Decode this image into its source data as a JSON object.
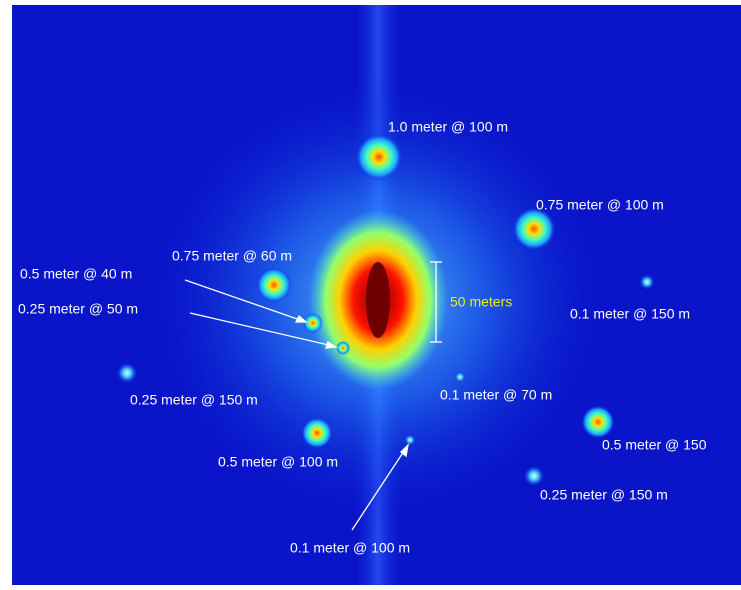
{
  "labels": [
    {
      "text": "1.0 meter @ 100 m"
    },
    {
      "text": "0.75 meter @ 100 m"
    },
    {
      "text": "0.75 meter @ 60 m"
    },
    {
      "text": "0.5 meter @ 40 m"
    },
    {
      "text": "0.25 meter @ 50 m"
    },
    {
      "text": "0.1 meter @ 150 m"
    },
    {
      "text": "0.25 meter @ 150 m"
    },
    {
      "text": "0.1 meter @ 70 m"
    },
    {
      "text": "0.5 meter @ 100 m"
    },
    {
      "text": "0.1 meter @ 100 m"
    },
    {
      "text": "0.5 meter @ 150"
    },
    {
      "text": "0.25 meter @ 150 m"
    }
  ],
  "scale_label": "50 meters"
}
